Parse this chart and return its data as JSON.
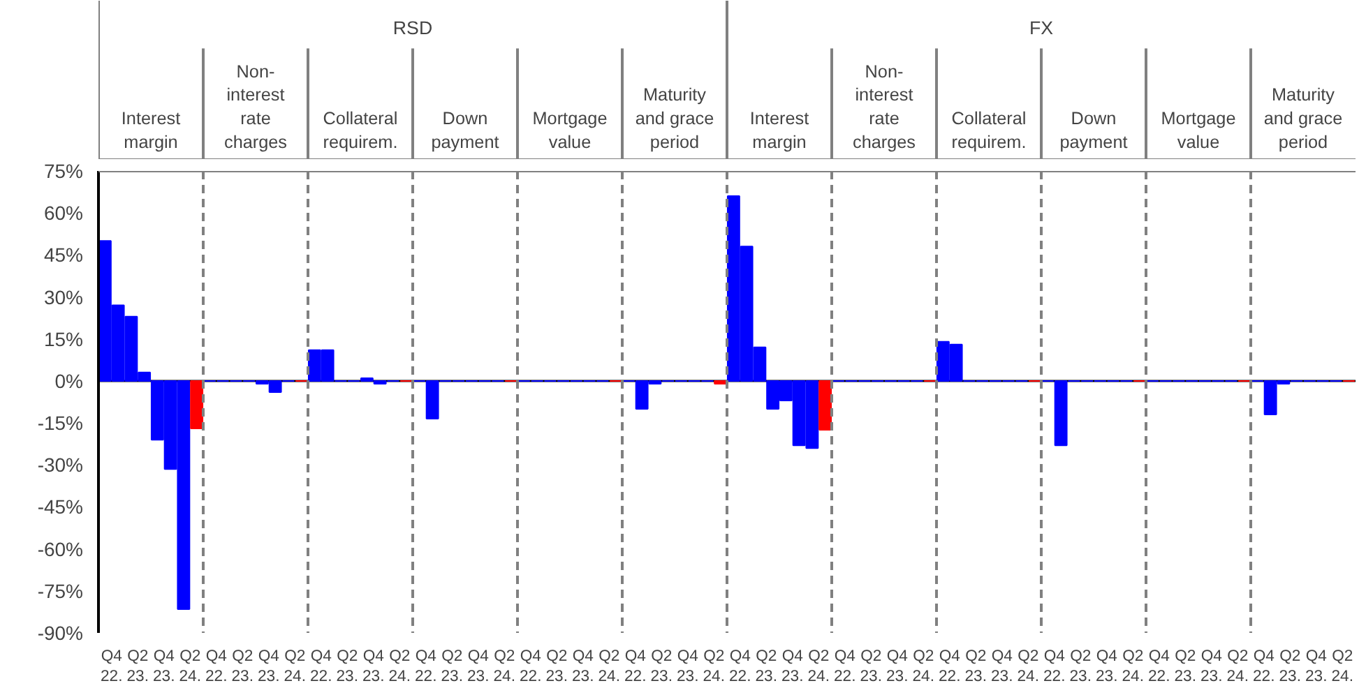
{
  "chart_data": {
    "type": "bar",
    "categories": [
      "Q4 22.",
      "Q2 23.",
      "Q4 23.",
      "Q2 24.",
      "Q4 22.",
      "Q2 23.",
      "Q4 23.",
      "Q2 24.",
      "Q4 22.",
      "Q2 23.",
      "Q4 23.",
      "Q2 24.",
      "Q4 22.",
      "Q2 23.",
      "Q4 23.",
      "Q2 24.",
      "Q4 22.",
      "Q2 23.",
      "Q4 23.",
      "Q2 24.",
      "Q4 22.",
      "Q2 23.",
      "Q4 23.",
      "Q2 24.",
      "Q4 22.",
      "Q2 23.",
      "Q4 23.",
      "Q2 24.",
      "Q4 22.",
      "Q2 23.",
      "Q4 23.",
      "Q2 24.",
      "Q4 22.",
      "Q2 23.",
      "Q4 23.",
      "Q2 24.",
      "Q4 22.",
      "Q2 23.",
      "Q4 23.",
      "Q2 24.",
      "Q4 22.",
      "Q2 23.",
      "Q4 23.",
      "Q2 24.",
      "Q4 22.",
      "Q2 23.",
      "Q4 23.",
      "Q2 24."
    ],
    "series": [
      {
        "color": "#0000ff",
        "values": [
          50,
          23,
          -21,
          -81.5,
          0,
          0,
          -1,
          0,
          11,
          0,
          1,
          0,
          0,
          0,
          0,
          0,
          0,
          0,
          0,
          0,
          0,
          -1,
          0,
          0,
          66,
          12,
          -7,
          -24,
          0,
          0,
          0,
          0,
          14,
          0,
          0,
          0,
          0,
          0,
          0,
          0,
          0,
          0,
          0,
          0,
          0,
          -1,
          0,
          0
        ]
      },
      {
        "color": "#0000ff",
        "colors": [
          "#0000ff",
          "#0000ff",
          "#0000ff",
          "#ff0000",
          "#0000ff",
          "#0000ff",
          "#0000ff",
          "#ff0000",
          "#0000ff",
          "#0000ff",
          "#0000ff",
          "#ff0000",
          "#0000ff",
          "#0000ff",
          "#0000ff",
          "#ff0000",
          "#0000ff",
          "#0000ff",
          "#0000ff",
          "#ff0000",
          "#0000ff",
          "#0000ff",
          "#0000ff",
          "#ff0000",
          "#0000ff",
          "#0000ff",
          "#0000ff",
          "#ff0000",
          "#0000ff",
          "#0000ff",
          "#0000ff",
          "#ff0000",
          "#0000ff",
          "#0000ff",
          "#0000ff",
          "#ff0000",
          "#0000ff",
          "#0000ff",
          "#0000ff",
          "#ff0000",
          "#0000ff",
          "#0000ff",
          "#0000ff",
          "#ff0000",
          "#0000ff",
          "#0000ff",
          "#0000ff",
          "#ff0000"
        ],
        "values": [
          27,
          3,
          -31.5,
          -17,
          0,
          0,
          -4,
          0,
          11,
          0,
          -1,
          0,
          -13.5,
          0,
          0,
          0,
          0,
          0,
          0,
          0,
          -10,
          0,
          0,
          -1,
          48,
          -10,
          -23,
          -17.5,
          0,
          0,
          0,
          0,
          13,
          0,
          0,
          0,
          -23,
          0,
          0,
          0,
          0,
          0,
          0,
          0,
          -12,
          0,
          0,
          0
        ]
      }
    ],
    "ylim": [
      -90,
      75
    ],
    "yticks": [
      {
        "value": -90,
        "label": "-90%"
      },
      {
        "value": -75,
        "label": "-75%"
      },
      {
        "value": -60,
        "label": "-60%"
      },
      {
        "value": -45,
        "label": "-45%"
      },
      {
        "value": -30,
        "label": "-30%"
      },
      {
        "value": -15,
        "label": "-15%"
      },
      {
        "value": 0,
        "label": "0%"
      },
      {
        "value": 15,
        "label": "15%"
      },
      {
        "value": 30,
        "label": "30%"
      },
      {
        "value": 45,
        "label": "45%"
      },
      {
        "value": 60,
        "label": "60%"
      },
      {
        "value": 75,
        "label": "75%"
      }
    ],
    "ref_lines": [
      {
        "axis": "y",
        "value": 0,
        "color": "#000000"
      }
    ],
    "grid": false,
    "annotations": [
      "RSD",
      "FX",
      "Interest\nmargin",
      "Non-\ninterest\nrate\ncharges",
      "Collateral\nrequirem.",
      "Down\npayment",
      "Mortgage\nvalue",
      "Maturity\nand grace\nperiod",
      "Interest\nmargin",
      "Non-\ninterest\nrate\ncharges",
      "Collateral\nrequirem.",
      "Down\npayment",
      "Mortgage\nvalue",
      "Maturity\nand grace\nperiod"
    ]
  }
}
